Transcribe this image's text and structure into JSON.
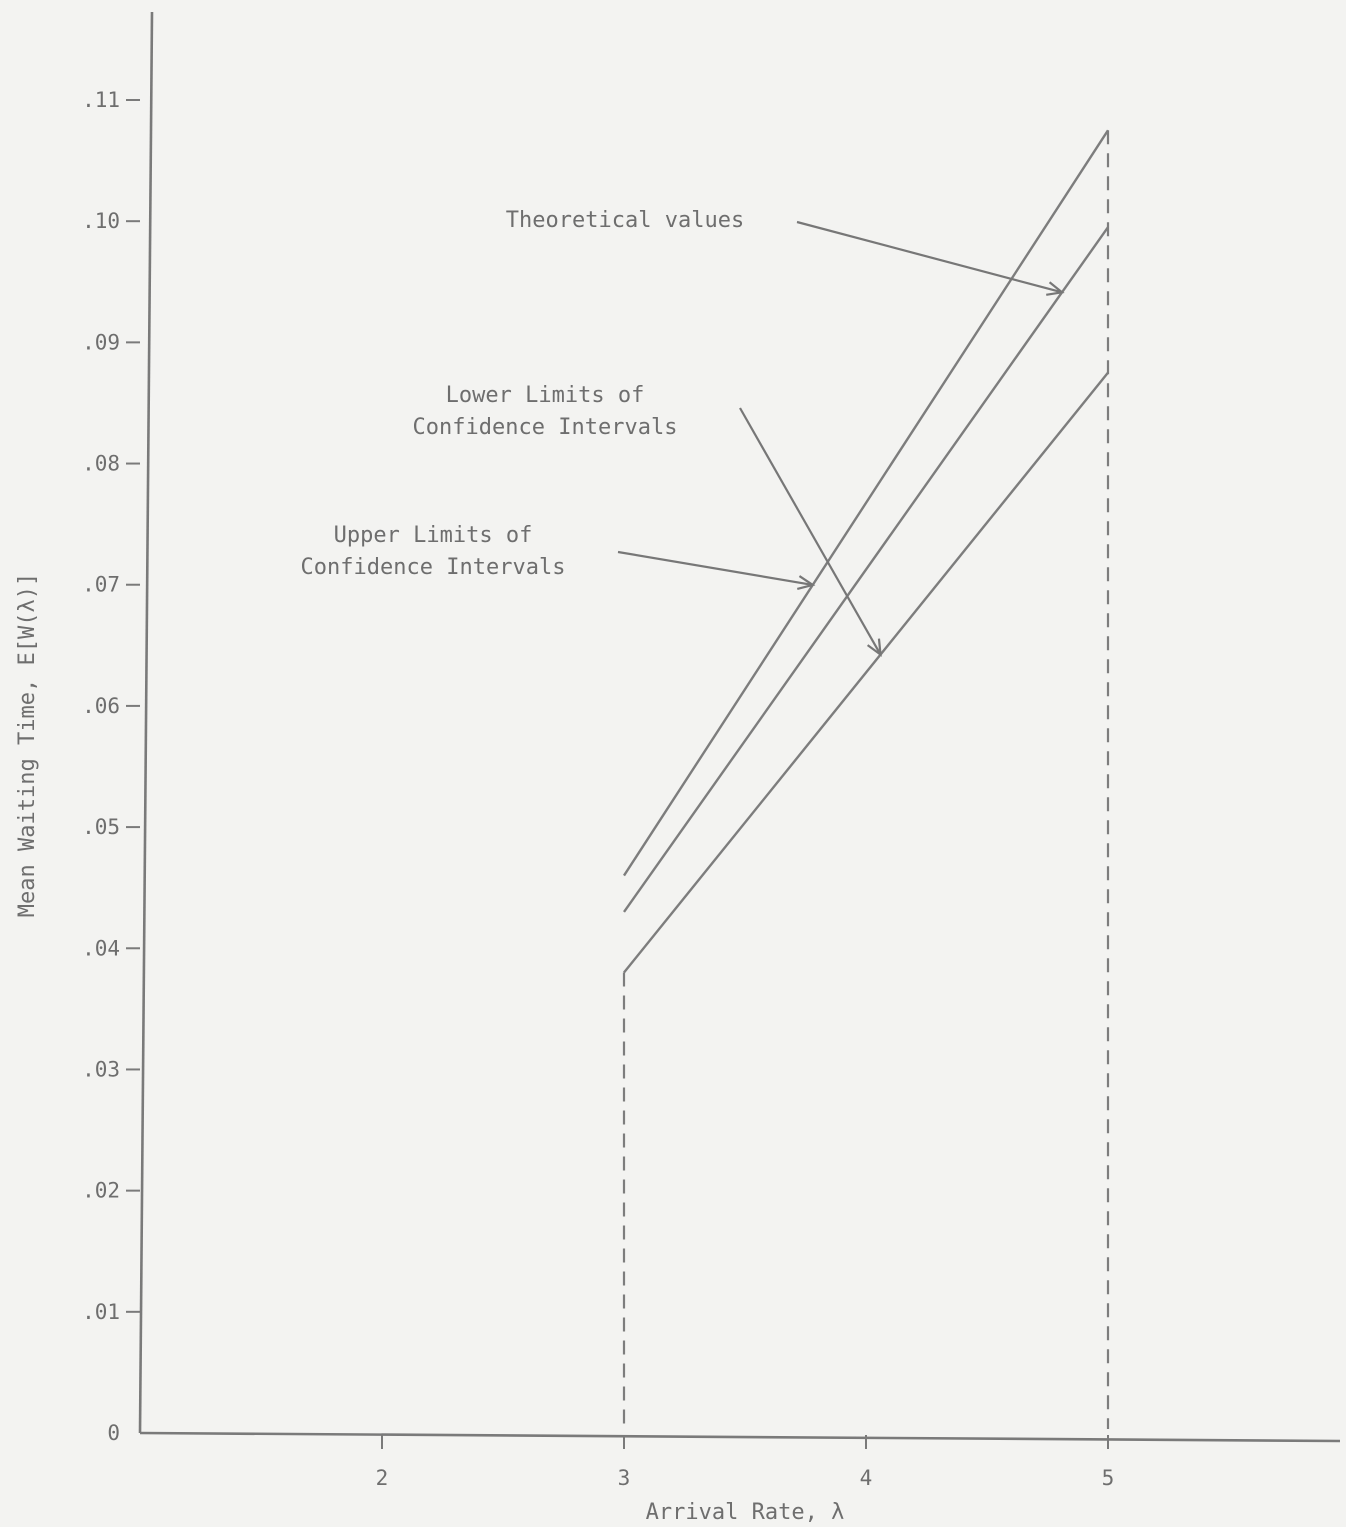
{
  "chart_data": {
    "type": "line",
    "title": "",
    "xlabel": "Arrival Rate, λ",
    "ylabel": "Mean Waiting Time, E[W(λ)]",
    "xlim": [
      1,
      6
    ],
    "ylim": [
      0,
      0.11
    ],
    "x_ticks": [
      2,
      3,
      4,
      5
    ],
    "x_tick_labels": [
      "2",
      "3",
      "4",
      "5"
    ],
    "y_ticks": [
      0,
      0.01,
      0.02,
      0.03,
      0.04,
      0.05,
      0.06,
      0.07,
      0.08,
      0.09,
      0.1,
      0.11
    ],
    "y_tick_labels": [
      "0",
      ".01",
      ".02",
      ".03",
      ".04",
      ".05",
      ".06",
      ".07",
      ".08",
      ".09",
      ".10",
      ".11"
    ],
    "x": [
      3,
      5
    ],
    "series": [
      {
        "values": [
          0.046,
          0.1075
        ]
      },
      {
        "values": [
          0.043,
          0.0995
        ]
      },
      {
        "values": [
          0.038,
          0.0875
        ]
      }
    ],
    "reference_lines": [
      {
        "orientation": "vertical",
        "x": 3,
        "style": "dashed"
      },
      {
        "orientation": "vertical",
        "x": 5,
        "style": "dashed"
      }
    ],
    "annotations": [
      {
        "lines": [
          "Theoretical values"
        ],
        "points_to_series": 1
      },
      {
        "lines": [
          "Lower Limits of",
          "Confidence Intervals"
        ],
        "points_to_series": 2
      },
      {
        "lines": [
          "Upper Limits of",
          "Confidence Intervals"
        ],
        "points_to_series": 0
      }
    ],
    "grid": false,
    "legend": "none"
  }
}
